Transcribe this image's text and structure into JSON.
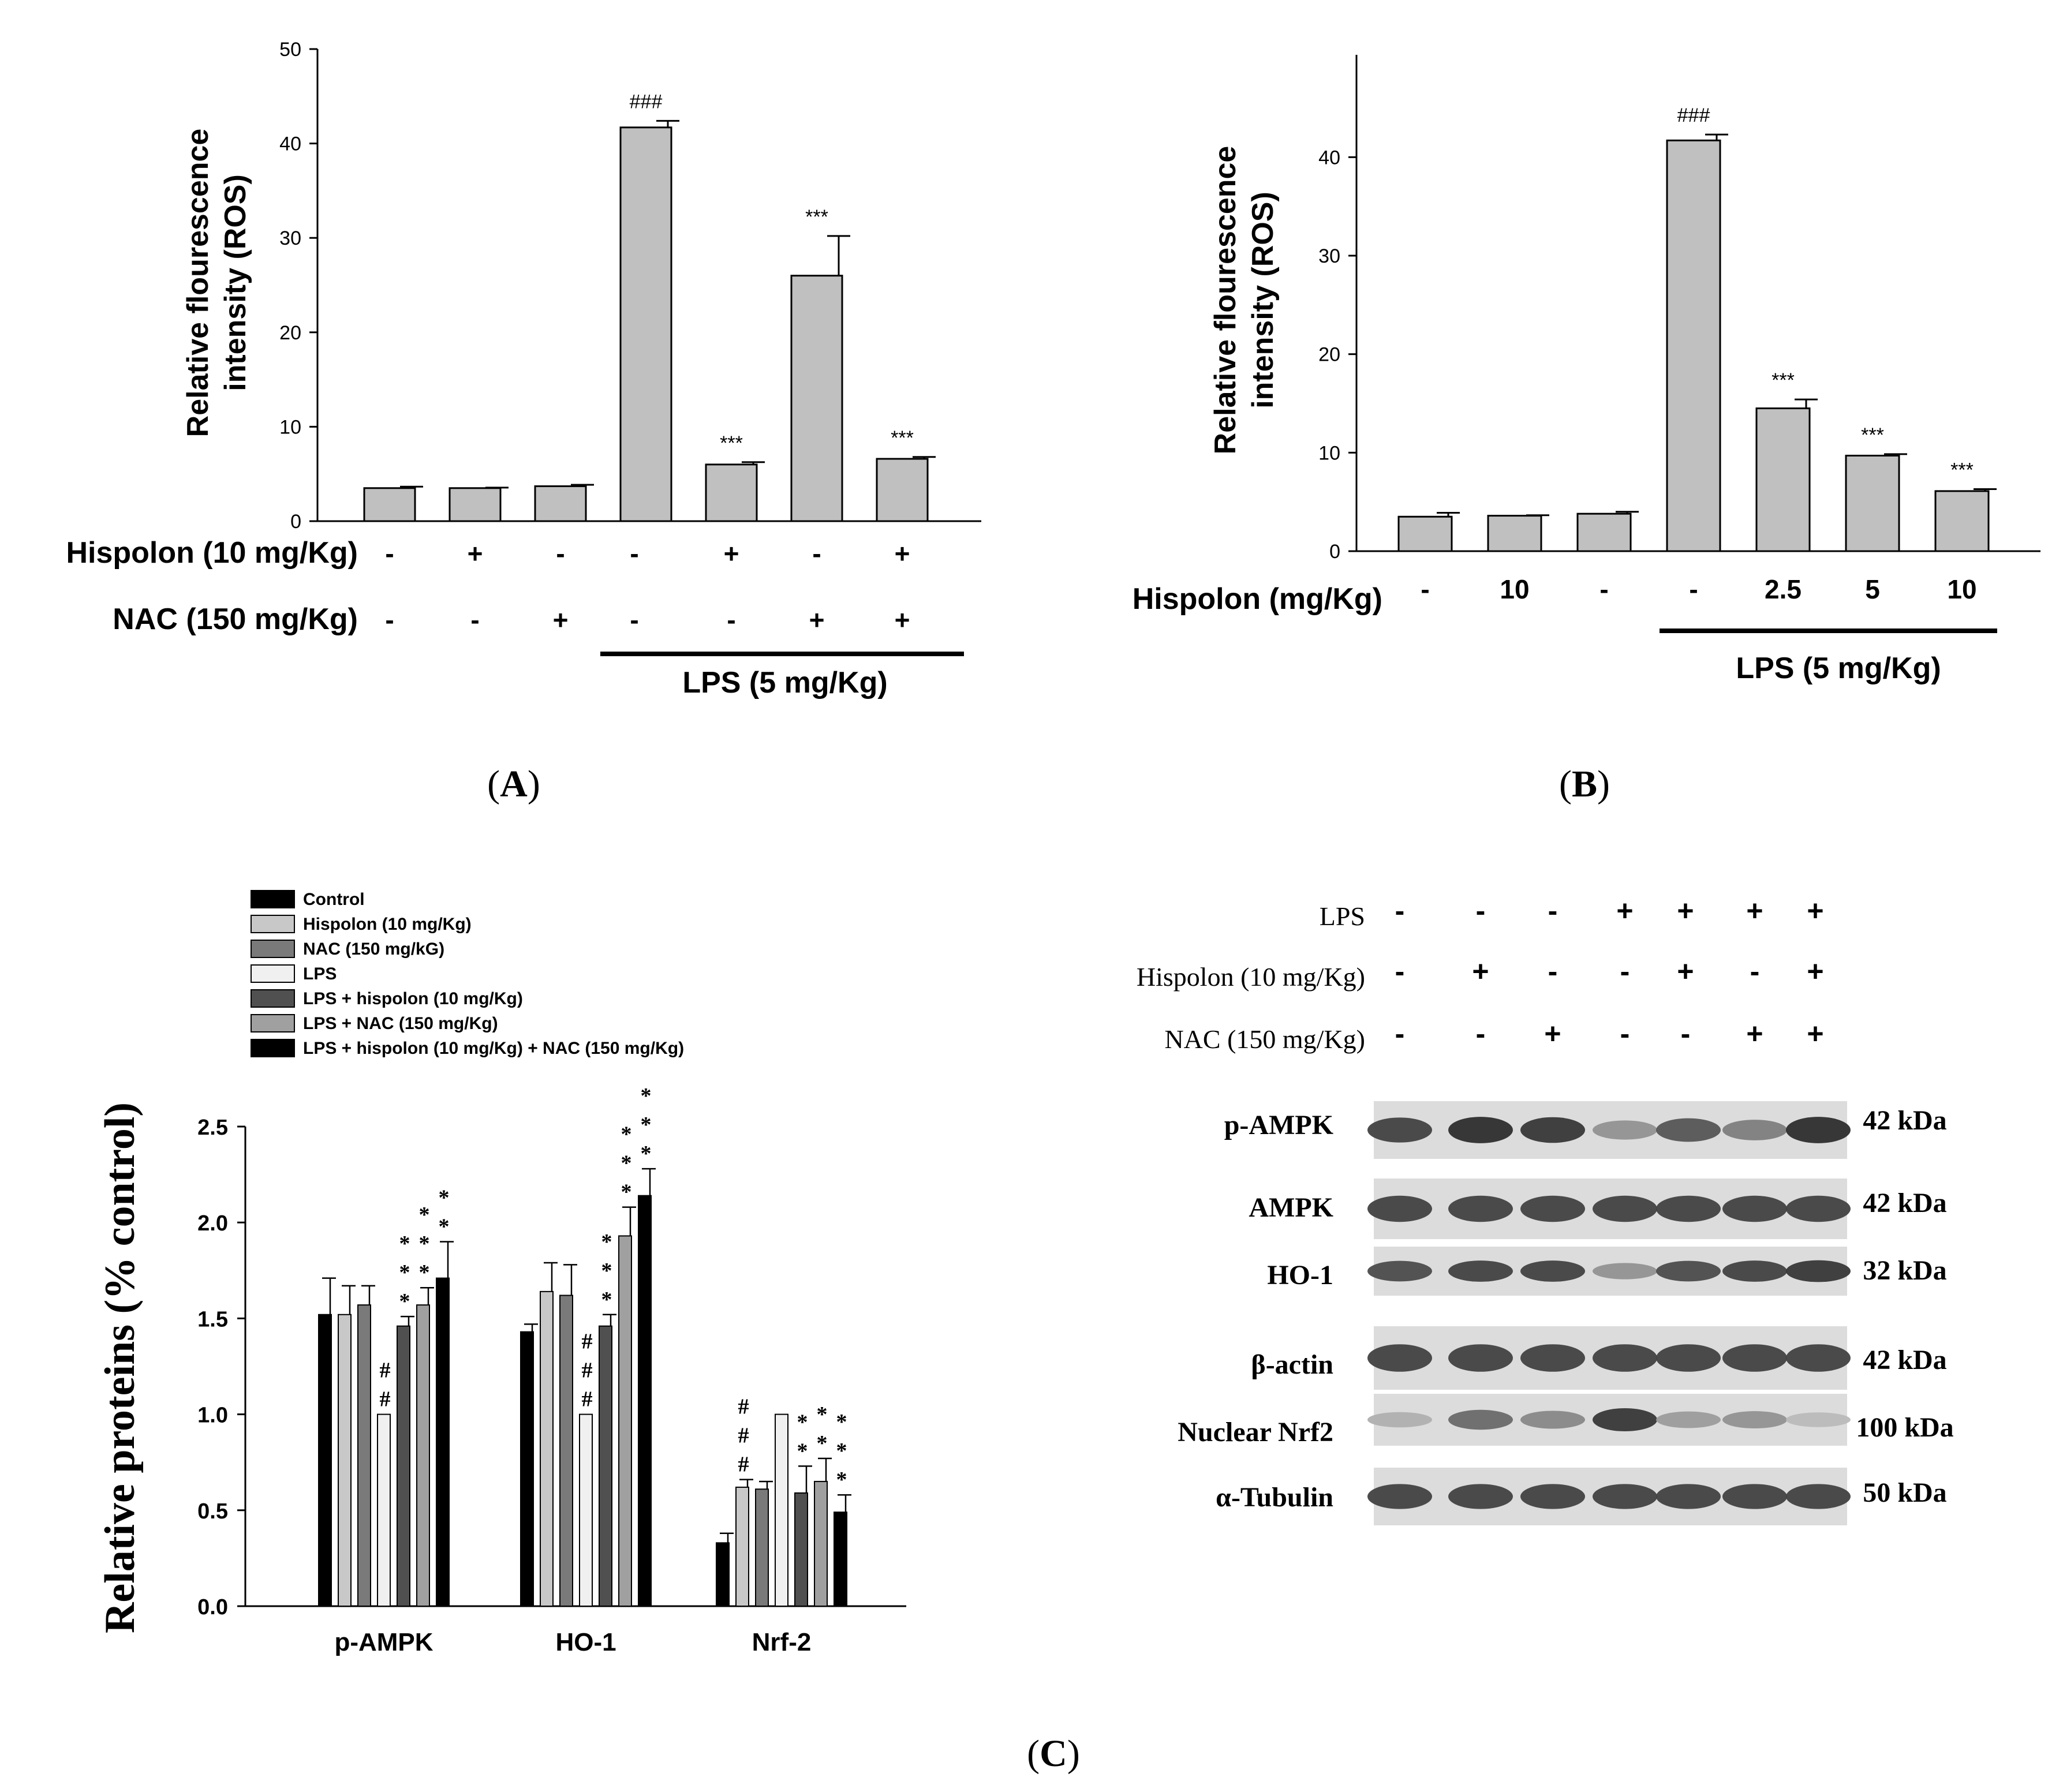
{
  "panel_labels": {
    "A": "A",
    "B": "B",
    "C": "C"
  },
  "chart_data": [
    {
      "panel": "A",
      "type": "bar",
      "ylabel_line1": "Relative flourescence",
      "ylabel_line2": "intensity (ROS)",
      "ylim": [
        0,
        50
      ],
      "yticks": [
        0,
        10,
        20,
        30,
        40,
        50
      ],
      "values": [
        3.5,
        3.5,
        3.7,
        41.7,
        6.0,
        26.0,
        6.6
      ],
      "errors": [
        0.15,
        0.05,
        0.15,
        0.7,
        0.25,
        4.2,
        0.2
      ],
      "annotations": [
        "",
        "",
        "",
        "###",
        "***",
        "***",
        "***"
      ],
      "bar_color": "#c0c0c0",
      "conditions": [
        {
          "label": "Hispolon (10 mg/Kg)",
          "values": [
            "-",
            "+",
            "-",
            "-",
            "+",
            "-",
            "+"
          ]
        },
        {
          "label": "NAC (150 mg/Kg)",
          "values": [
            "-",
            "-",
            "+",
            "-",
            "-",
            "+",
            "+"
          ]
        }
      ],
      "group_bracket": "LPS (5 mg/Kg)"
    },
    {
      "panel": "B",
      "type": "bar",
      "ylabel_line1": "Relative flourescence",
      "ylabel_line2": "intensity (ROS)",
      "ylim": [
        0,
        45
      ],
      "yticks": [
        0,
        10,
        20,
        30,
        40
      ],
      "values": [
        3.5,
        3.6,
        3.8,
        41.7,
        14.5,
        9.7,
        6.1
      ],
      "errors": [
        0.4,
        0.05,
        0.2,
        0.6,
        0.9,
        0.15,
        0.2
      ],
      "annotations": [
        "",
        "",
        "",
        "###",
        "***",
        "***",
        "***"
      ],
      "bar_color": "#c0c0c0",
      "conditions": [
        {
          "label": "Hispolon (mg/Kg)",
          "values": [
            "-",
            "10",
            "-",
            "-",
            "2.5",
            "5",
            "10"
          ]
        }
      ],
      "group_bracket": "LPS (5 mg/Kg)"
    },
    {
      "panel": "C",
      "type": "bar",
      "ylabel": "Relative proteins (% control)",
      "ylim": [
        0,
        2.5
      ],
      "yticks": [
        "0.0",
        "0.5",
        "1.0",
        "1.5",
        "2.0",
        "2.5"
      ],
      "categories": [
        "p-AMPK",
        "HO-1",
        "Nrf-2"
      ],
      "legend_position": "top",
      "series": [
        {
          "name": "Control",
          "color": "#000000",
          "values": [
            1.52,
            1.43,
            0.33
          ],
          "errors": [
            0.19,
            0.04,
            0.05
          ]
        },
        {
          "name": "Hispolon (10 mg/Kg)",
          "color": "#c8c8c8",
          "values": [
            1.52,
            1.64,
            0.62
          ],
          "errors": [
            0.15,
            0.15,
            0.04
          ]
        },
        {
          "name": "NAC (150 mg/kG)",
          "color": "#7a7a7a",
          "values": [
            1.57,
            1.62,
            0.61
          ],
          "errors": [
            0.1,
            0.16,
            0.04
          ]
        },
        {
          "name": "LPS",
          "color": "#f0f0f0",
          "values": [
            1.0,
            1.0,
            1.0
          ],
          "errors": [
            0,
            0,
            0
          ]
        },
        {
          "name": "LPS + hispolon (10 mg/Kg)",
          "color": "#505050",
          "values": [
            1.46,
            1.46,
            0.59
          ],
          "errors": [
            0.05,
            0.06,
            0.14
          ]
        },
        {
          "name": "LPS + NAC (150 mg/Kg)",
          "color": "#a0a0a0",
          "values": [
            1.57,
            1.93,
            0.65
          ],
          "errors": [
            0.09,
            0.15,
            0.12
          ]
        },
        {
          "name": "LPS + hispolon (10 mg/Kg) + NAC (150 mg/Kg)",
          "color": "#000000",
          "values": [
            1.71,
            2.14,
            0.49
          ],
          "errors": [
            0.19,
            0.14,
            0.09
          ]
        }
      ],
      "annotations": [
        {
          "category": "p-AMPK",
          "series": 3,
          "marks": [
            "#",
            "#"
          ]
        },
        {
          "category": "p-AMPK",
          "series": 4,
          "marks": [
            "*",
            "*",
            "*"
          ]
        },
        {
          "category": "p-AMPK",
          "series": 5,
          "marks": [
            "*",
            "*",
            "*"
          ]
        },
        {
          "category": "p-AMPK",
          "series": 6,
          "marks": [
            "*",
            "*"
          ]
        },
        {
          "category": "HO-1",
          "series": 3,
          "marks": [
            "#",
            "#",
            "#"
          ]
        },
        {
          "category": "HO-1",
          "series": 4,
          "marks": [
            "*",
            "*",
            "*"
          ]
        },
        {
          "category": "HO-1",
          "series": 5,
          "marks": [
            "*",
            "*",
            "*"
          ]
        },
        {
          "category": "HO-1",
          "series": 6,
          "marks": [
            "*",
            "*",
            "*"
          ]
        },
        {
          "category": "Nrf-2",
          "series": 1,
          "marks": [
            "#",
            "#",
            "#"
          ]
        },
        {
          "category": "Nrf-2",
          "series": 4,
          "marks": [
            "*",
            "*"
          ]
        },
        {
          "category": "Nrf-2",
          "series": 5,
          "marks": [
            "*",
            "*"
          ]
        },
        {
          "category": "Nrf-2",
          "series": 6,
          "marks": [
            "*",
            "*",
            "*"
          ]
        }
      ]
    }
  ],
  "blot": {
    "treatments": [
      {
        "label": "LPS",
        "values": [
          "-",
          "-",
          "-",
          "+",
          "+",
          "+",
          "+"
        ]
      },
      {
        "label": "Hispolon (10 mg/Kg)",
        "values": [
          "-",
          "+",
          "-",
          "-",
          "+",
          "-",
          "+"
        ]
      },
      {
        "label": "NAC (150 mg/Kg)",
        "values": [
          "-",
          "-",
          "+",
          "-",
          "-",
          "+",
          "+"
        ]
      }
    ],
    "rows": [
      {
        "label": "p-AMPK",
        "kda": "42 kDa",
        "intensities": [
          0.85,
          0.95,
          0.9,
          0.45,
          0.75,
          0.55,
          0.95
        ]
      },
      {
        "label": "AMPK",
        "kda": "42 kDa",
        "intensities": [
          0.85,
          0.85,
          0.85,
          0.85,
          0.85,
          0.85,
          0.85
        ]
      },
      {
        "label": "HO-1",
        "kda": "32 kDa",
        "intensities": [
          0.8,
          0.85,
          0.85,
          0.45,
          0.8,
          0.85,
          0.9
        ]
      },
      {
        "label": "β-actin",
        "kda": "42 kDa",
        "intensities": [
          0.85,
          0.85,
          0.85,
          0.85,
          0.85,
          0.85,
          0.85
        ]
      },
      {
        "label": "Nuclear Nrf2",
        "kda": "100 kDa",
        "intensities": [
          0.3,
          0.65,
          0.5,
          0.9,
          0.4,
          0.45,
          0.25
        ]
      },
      {
        "label": "α-Tubulin",
        "kda": "50 kDa",
        "intensities": [
          0.85,
          0.85,
          0.85,
          0.85,
          0.85,
          0.85,
          0.85
        ]
      }
    ]
  }
}
